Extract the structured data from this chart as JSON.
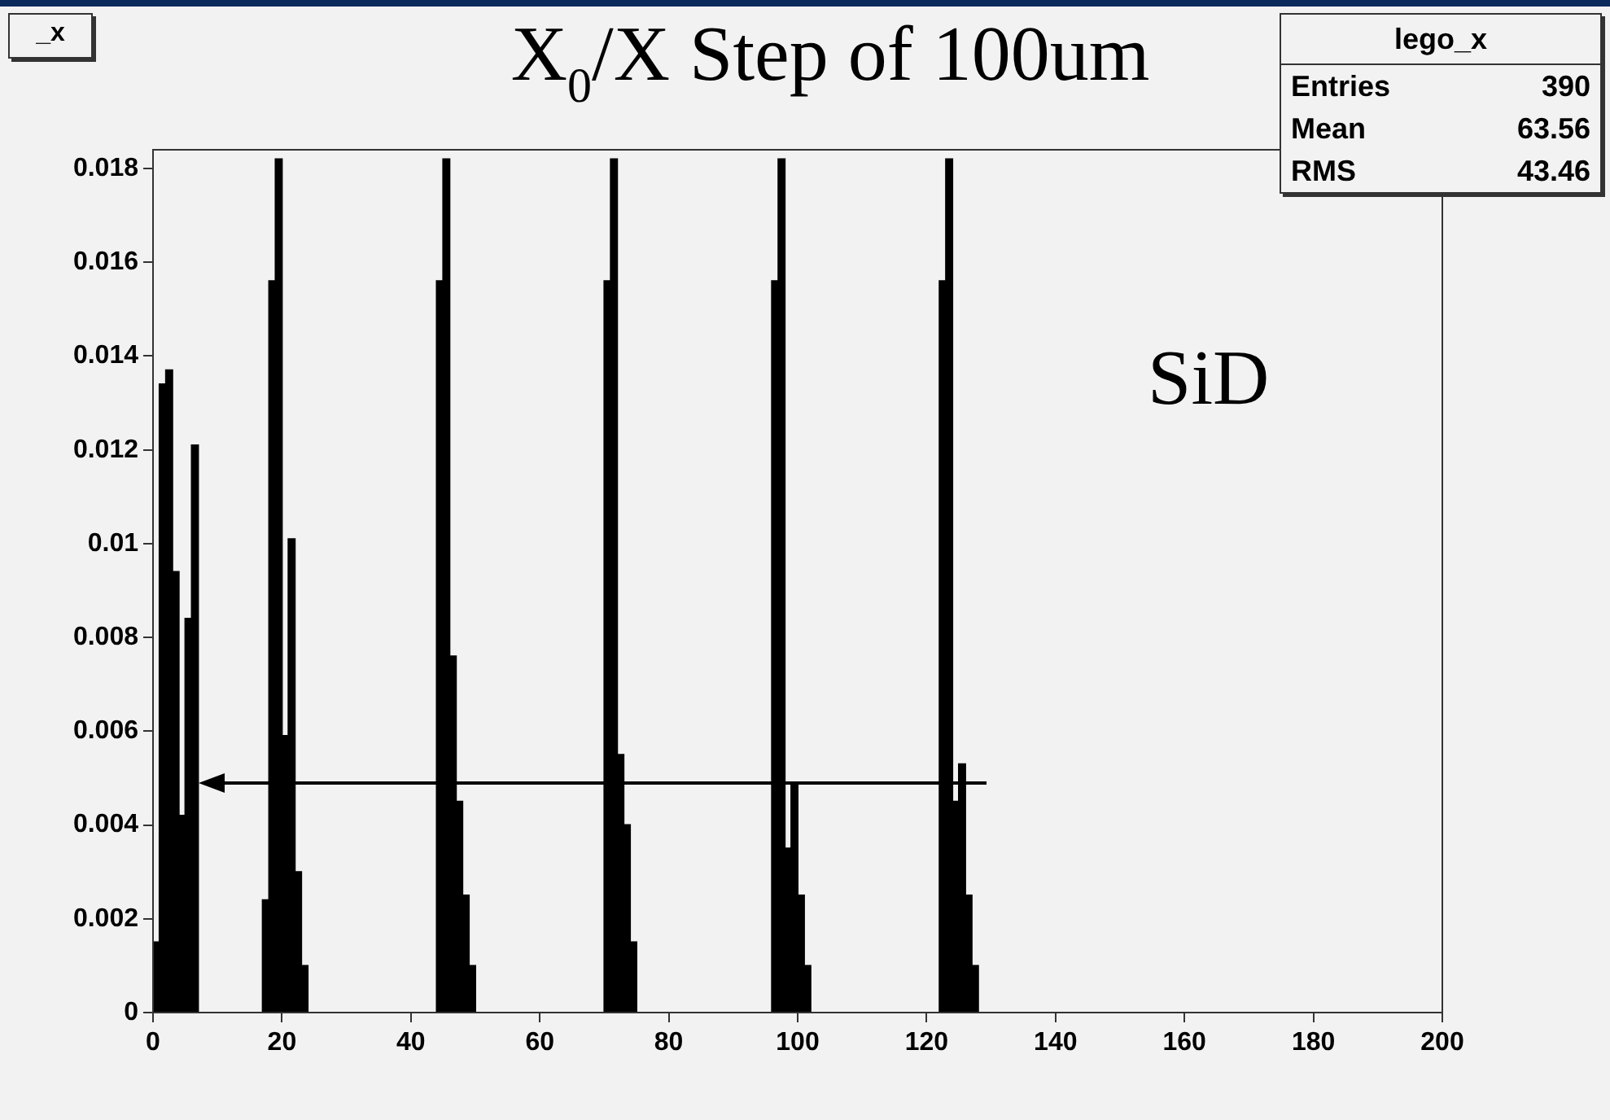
{
  "chart_data": {
    "type": "histogram",
    "title": "X$_{0}$/X  Step of 100um",
    "bins": [
      0,
      1,
      2,
      3,
      4,
      5,
      6,
      7,
      8,
      9,
      10,
      11,
      12,
      13,
      14,
      15,
      16,
      17,
      18,
      19,
      20,
      21,
      22,
      23,
      24,
      25,
      26,
      27,
      28,
      29,
      30,
      31,
      32,
      33,
      34,
      35,
      36,
      37,
      38,
      39,
      40,
      41,
      42,
      43,
      44,
      45,
      46,
      47,
      48,
      49,
      50,
      51,
      52,
      53,
      54,
      55,
      56,
      57,
      58,
      59,
      60,
      61,
      62,
      63,
      64,
      65,
      66,
      67,
      68,
      69,
      70,
      71,
      72,
      73,
      74,
      75,
      76,
      77,
      78,
      79,
      80,
      81,
      82,
      83,
      84,
      85,
      86,
      87,
      88,
      89,
      90,
      91,
      92,
      93,
      94,
      95,
      96,
      97,
      98,
      99,
      100,
      101,
      102,
      103,
      104,
      105,
      106,
      107,
      108,
      109,
      110,
      111,
      112,
      113,
      114,
      115,
      116,
      117,
      118,
      119,
      120,
      121,
      122,
      123,
      124,
      125,
      126,
      127,
      128,
      129,
      130,
      131,
      132,
      133,
      134,
      135,
      136,
      137,
      138,
      139,
      140,
      141,
      142,
      143,
      144,
      145,
      146,
      147,
      148,
      149,
      150,
      151,
      152,
      153,
      154,
      155,
      156,
      157,
      158,
      159,
      160,
      161,
      162,
      163,
      164,
      165,
      166,
      167,
      168,
      169,
      170,
      171,
      172,
      173,
      174,
      175,
      176,
      177,
      178,
      179,
      180,
      181,
      182,
      183,
      184,
      185,
      186,
      187,
      188,
      189,
      190,
      191,
      192,
      193,
      194,
      195,
      196,
      197,
      198,
      199,
      200
    ],
    "values": [
      0.0015,
      0.0134,
      0.0137,
      0.0094,
      0.0042,
      0.0084,
      0.0121,
      0,
      0,
      0,
      0,
      0,
      0,
      0,
      0,
      0,
      0,
      0.0024,
      0.0156,
      0.0182,
      0.0059,
      0.0101,
      0.003,
      0.001,
      0,
      0,
      0,
      0,
      0,
      0,
      0,
      0,
      0,
      0,
      0,
      0,
      0,
      0,
      0,
      0,
      0,
      0,
      0,
      0,
      0.0156,
      0.0182,
      0.0076,
      0.0045,
      0.0025,
      0.001,
      0,
      0,
      0,
      0,
      0,
      0,
      0,
      0,
      0,
      0,
      0,
      0,
      0,
      0,
      0,
      0,
      0,
      0,
      0,
      0,
      0.0156,
      0.0182,
      0.0055,
      0.004,
      0.0015,
      0,
      0,
      0,
      0,
      0,
      0,
      0,
      0,
      0,
      0,
      0,
      0,
      0,
      0,
      0,
      0,
      0,
      0,
      0,
      0,
      0,
      0.0156,
      0.0182,
      0.0035,
      0.0049,
      0.0025,
      0.001,
      0,
      0,
      0,
      0,
      0,
      0,
      0,
      0,
      0,
      0,
      0,
      0,
      0,
      0,
      0,
      0,
      0,
      0,
      0,
      0,
      0.0156,
      0.0182,
      0.0045,
      0.0053,
      0.0025,
      0.001,
      0,
      0,
      0,
      0,
      0,
      0,
      0,
      0,
      0,
      0,
      0,
      0,
      0,
      0,
      0,
      0,
      0,
      0,
      0,
      0,
      0,
      0,
      0,
      0,
      0,
      0,
      0,
      0,
      0,
      0,
      0,
      0,
      0,
      0,
      0,
      0,
      0,
      0,
      0,
      0,
      0,
      0,
      0,
      0,
      0,
      0,
      0,
      0,
      0,
      0,
      0,
      0,
      0,
      0,
      0,
      0,
      0,
      0,
      0,
      0,
      0,
      0,
      0,
      0,
      0,
      0,
      0,
      0,
      0,
      0,
      0,
      0
    ],
    "color": "#000000",
    "xlim": [
      0,
      200
    ],
    "xticks": [
      0,
      20,
      40,
      60,
      80,
      100,
      120,
      140,
      160,
      180,
      200
    ],
    "ylim": [
      0,
      0.0184
    ],
    "yticks": [
      0,
      0.002,
      0.004,
      0.006,
      0.008,
      0.01,
      0.012,
      0.014,
      0.016,
      0.018
    ],
    "annotations": [
      "_x",
      "SiD",
      "lego_x",
      "Entries",
      "390",
      "Mean",
      "63.56",
      "RMS",
      "43.46"
    ]
  }
}
